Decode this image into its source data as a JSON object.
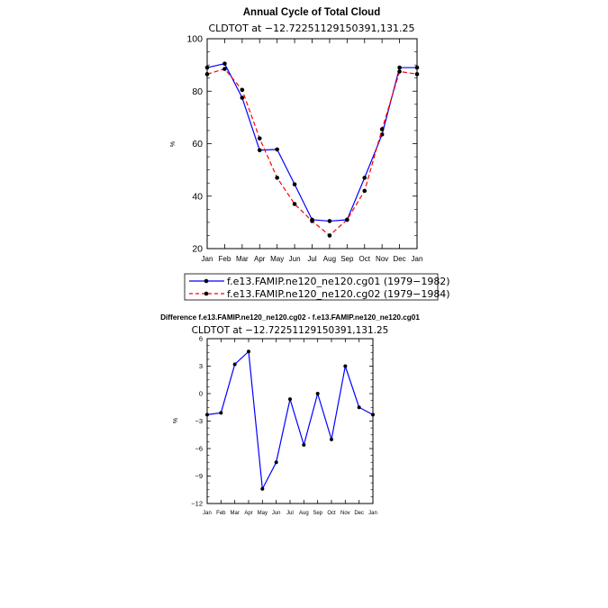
{
  "chart_data": [
    {
      "type": "line",
      "title": "Annual Cycle of Total Cloud",
      "subtitle": "CLDTOT at −12.72251129150391,131.25",
      "ylabel": "%",
      "ylim": [
        20,
        100
      ],
      "yticks": [
        "20",
        "40",
        "60",
        "80",
        "100"
      ],
      "categories": [
        "Jan",
        "Feb",
        "Mar",
        "Apr",
        "May",
        "Jun",
        "Jul",
        "Aug",
        "Sep",
        "Oct",
        "Nov",
        "Dec",
        "Jan"
      ],
      "legend_placement": "bottom",
      "series": [
        {
          "name": "f.e13.FAMIP.ne120_ne120.cg01 (1979−1982)",
          "color": "#0000ff",
          "dash": "solid",
          "values": [
            89,
            90.5,
            77.5,
            57.5,
            57.8,
            44.5,
            31,
            30.5,
            31,
            47,
            63.5,
            89,
            89
          ]
        },
        {
          "name": "f.e13.FAMIP.ne120_ne120.cg02 (1979−1984)",
          "color": "#ff0000",
          "dash": "dashed",
          "values": [
            86.5,
            88.5,
            80.5,
            62,
            47,
            37,
            30.5,
            25,
            31,
            42,
            65.5,
            87.5,
            86.5
          ]
        }
      ]
    },
    {
      "type": "line",
      "title": "Difference f.e13.FAMIP.ne120_ne120.cg02 - f.e13.FAMIP.ne120_ne120.cg01",
      "subtitle": "CLDTOT at −12.72251129150391,131.25",
      "ylabel": "%",
      "ylim": [
        -12,
        6
      ],
      "yticks": [
        "−12",
        "−9",
        "−6",
        "−3",
        "0",
        "3",
        "6"
      ],
      "categories": [
        "Jan",
        "Feb",
        "Mar",
        "Apr",
        "May",
        "Jun",
        "Jul",
        "Aug",
        "Sep",
        "Oct",
        "Nov",
        "Dec",
        "Jan"
      ],
      "series": [
        {
          "name": "",
          "color": "#0000ff",
          "dash": "solid",
          "values": [
            -2.3,
            -2.1,
            3.2,
            4.6,
            -10.4,
            -7.5,
            -0.6,
            -5.6,
            0,
            -5,
            3,
            -1.5,
            -2.3
          ]
        }
      ]
    }
  ]
}
